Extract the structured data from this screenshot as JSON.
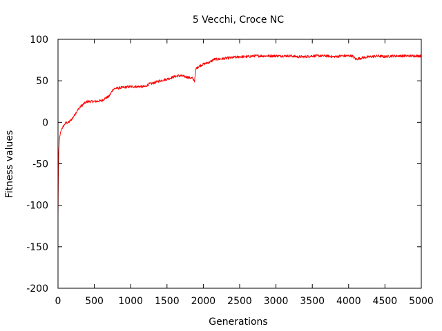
{
  "chart_data": {
    "type": "line",
    "title": "5 Vecchi, Croce NC",
    "xlabel": "Generations",
    "ylabel": "Fitness values",
    "xlim": [
      0,
      5000
    ],
    "ylim": [
      -200,
      100
    ],
    "xticks": [
      "0",
      "500",
      "1000",
      "1500",
      "2000",
      "2500",
      "3000",
      "3500",
      "4000",
      "4500",
      "5000"
    ],
    "yticks": [
      "100",
      "50",
      "0",
      "-50",
      "-100",
      "-150",
      "-200"
    ],
    "grid": false,
    "legend": "none",
    "line_color": "#ff0000",
    "series": [
      {
        "x": [
          0,
          5,
          10,
          20,
          35,
          50,
          75,
          100,
          150,
          200,
          250,
          300,
          350,
          400,
          500,
          600,
          650,
          700,
          760,
          800,
          900,
          1000,
          1100,
          1200,
          1250,
          1300,
          1400,
          1500,
          1600,
          1650,
          1700,
          1800,
          1850,
          1880,
          1900,
          1950,
          2000,
          2100,
          2150,
          2200,
          2300,
          2400,
          2500,
          2600,
          2700,
          2800,
          2900,
          3000,
          3100,
          3200,
          3300,
          3400,
          3500,
          3600,
          3700,
          3800,
          3900,
          4000,
          4050,
          4100,
          4200,
          4300,
          4400,
          4500,
          4600,
          4700,
          4800,
          4900,
          5000
        ],
        "y": [
          -112,
          -60,
          -35,
          -20,
          -12,
          -8,
          -5,
          -1,
          0,
          5,
          12,
          18,
          22,
          25,
          25,
          26,
          29,
          31,
          40,
          41,
          42,
          43,
          43,
          43,
          46,
          47,
          50,
          52,
          55,
          56,
          56,
          54,
          53,
          50,
          65,
          68,
          70,
          73,
          76,
          76,
          77,
          78,
          79,
          79,
          80,
          80,
          80,
          80,
          80,
          80,
          79,
          79,
          80,
          80,
          80,
          79,
          80,
          80,
          80,
          76,
          78,
          79,
          80,
          79,
          80,
          80,
          80,
          80,
          80
        ]
      }
    ]
  }
}
